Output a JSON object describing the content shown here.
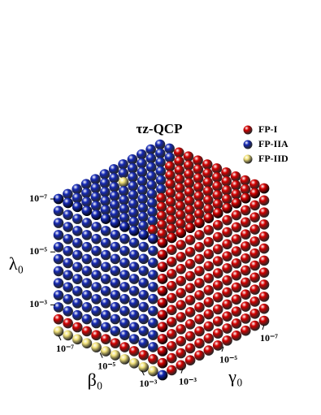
{
  "chart_data": {
    "type": "cube3d",
    "title": "τz-QCP",
    "series": [
      {
        "name": "FP-I",
        "color": "#d40000"
      },
      {
        "name": "FP-IIA",
        "color": "#1428b4"
      },
      {
        "name": "FP-IID",
        "color": "#f2e27a"
      }
    ],
    "log_scale": true,
    "zlabel": "λ₀",
    "xlabel": "β₀",
    "ylabel": "γ₀",
    "zlim": [
      0.01,
      1e-07
    ],
    "xlim": [
      0.01,
      1e-07
    ],
    "ylim": [
      0.01,
      1e-07
    ],
    "zticks": [
      {
        "value": 1e-07,
        "label": "10⁻⁷"
      },
      {
        "value": 1e-05,
        "label": "10⁻⁵"
      },
      {
        "value": 0.001,
        "label": "10⁻³"
      }
    ],
    "xticks": [
      {
        "value": 1e-07,
        "label": "10⁻⁷"
      },
      {
        "value": 1e-05,
        "label": "10⁻⁵"
      },
      {
        "value": 0.001,
        "label": "10⁻³"
      }
    ],
    "yticks": [
      {
        "value": 1e-07,
        "label": "10⁻⁷"
      },
      {
        "value": 1e-05,
        "label": "10⁻⁵"
      },
      {
        "value": 0.001,
        "label": "10⁻³"
      }
    ]
  }
}
